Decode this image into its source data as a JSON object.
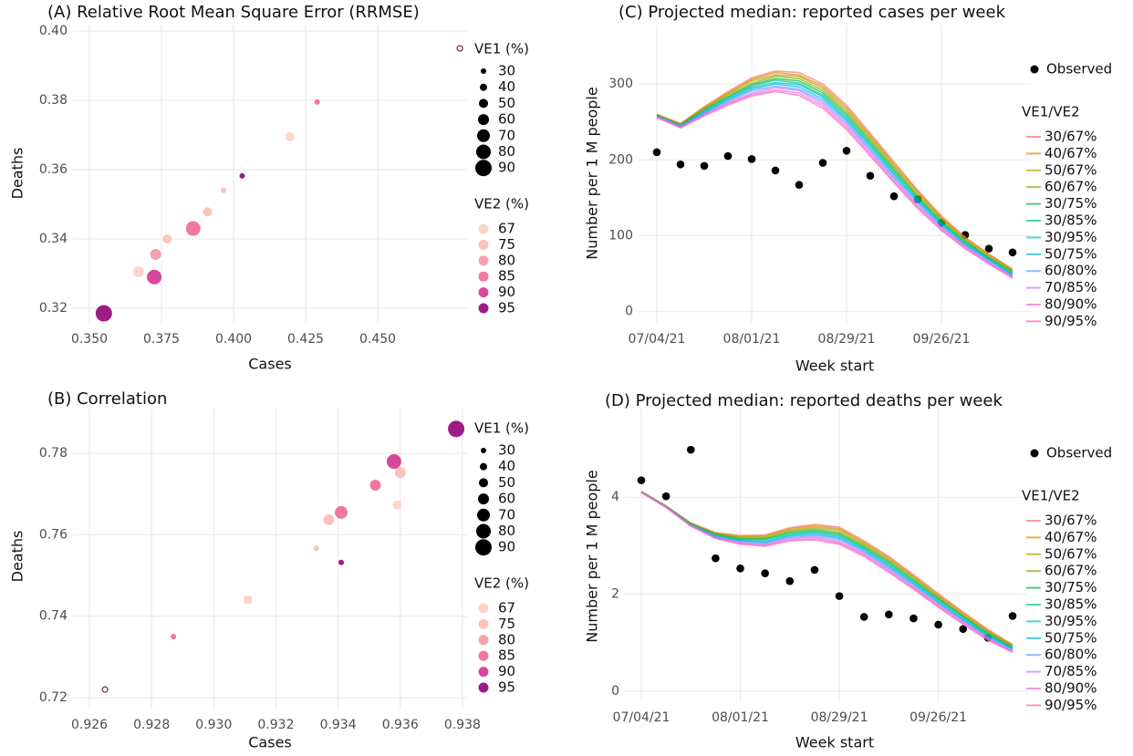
{
  "chart_data": [
    {
      "type": "scatter",
      "title": "(A) Relative Root Mean Square Error (RRMSE)",
      "x_label": "Cases",
      "y_label": "Deaths",
      "x": [
        0.355,
        0.367,
        0.3725,
        0.373,
        0.377,
        0.386,
        0.391,
        0.3965,
        0.403,
        0.4195,
        0.429,
        0.4785
      ],
      "y": [
        0.3185,
        0.3305,
        0.329,
        0.3355,
        0.34,
        0.343,
        0.3478,
        0.354,
        0.3582,
        0.3695,
        0.3795,
        0.395
      ],
      "sizes": [
        90,
        60,
        80,
        60,
        50,
        80,
        50,
        30,
        30,
        50,
        30,
        30
      ],
      "color_values": [
        95,
        67,
        90,
        80,
        75,
        85,
        75,
        75,
        95,
        67,
        85,
        null
      ],
      "xlim": [
        0.3443,
        0.481
      ],
      "ylim": [
        0.3155,
        0.4016
      ],
      "xticks": [
        {
          "value": 0.35,
          "label": "0.350"
        },
        {
          "value": 0.375,
          "label": "0.375"
        },
        {
          "value": 0.4,
          "label": "0.400"
        },
        {
          "value": 0.425,
          "label": "0.425"
        },
        {
          "value": 0.45,
          "label": "0.450"
        }
      ],
      "yticks": [
        0.32,
        0.34,
        0.36,
        0.38,
        {
          "value": 0.4,
          "label": "0.40"
        }
      ],
      "grid": true,
      "size_legend": {
        "title": "VE1 (%)",
        "values": [
          30,
          40,
          50,
          60,
          70,
          80,
          90
        ]
      },
      "color_legend": {
        "title": "VE2 (%)",
        "values": [
          67,
          75,
          80,
          85,
          90,
          95
        ],
        "colors": [
          "#fdd5c9",
          "#fbc3bb",
          "#f8a1af",
          "#f277a0",
          "#d9479a",
          "#9e1a87"
        ]
      }
    },
    {
      "type": "scatter",
      "title": "(B) Correlation",
      "x_label": "Cases",
      "y_label": "Deaths",
      "x": [
        0.9265,
        0.9287,
        0.9311,
        0.9333,
        0.9337,
        0.9341,
        0.9341,
        0.9352,
        0.9358,
        0.936,
        0.9359,
        0.9378
      ],
      "y": [
        0.722,
        0.735,
        0.744,
        0.7567,
        0.7637,
        0.7655,
        0.7532,
        0.7722,
        0.778,
        0.7753,
        0.7673,
        0.786
      ],
      "sizes": [
        30,
        30,
        50,
        30,
        60,
        70,
        30,
        60,
        80,
        60,
        50,
        90
      ],
      "color_values": [
        null,
        85,
        67,
        75,
        75,
        85,
        95,
        85,
        90,
        75,
        67,
        95
      ],
      "xlim": [
        0.92547,
        0.93815
      ],
      "ylim": [
        0.7171,
        0.791
      ],
      "xticks": [
        0.926,
        0.928,
        {
          "value": 0.93,
          "label": "0.930"
        },
        0.932,
        0.934,
        0.936,
        0.938
      ],
      "yticks": [
        0.72,
        0.74,
        0.76,
        0.78
      ],
      "grid": true,
      "size_legend": {
        "title": "VE1 (%)",
        "values": [
          30,
          40,
          50,
          60,
          70,
          80,
          90
        ]
      },
      "color_legend": {
        "title": "VE2 (%)",
        "values": [
          67,
          75,
          80,
          85,
          90,
          95
        ],
        "colors": [
          "#fdd5c9",
          "#fbc3bb",
          "#f8a1af",
          "#f277a0",
          "#d9479a",
          "#9e1a87"
        ]
      }
    },
    {
      "type": "line",
      "title": "(C) Projected median: reported cases per week",
      "x_label": "Week start",
      "y_label": "Number per 1 M people",
      "categories": [
        "07/04/21",
        null,
        null,
        null,
        "08/01/21",
        null,
        null,
        null,
        "08/29/21",
        null,
        null,
        null,
        "09/26/21",
        null,
        null,
        null
      ],
      "ylim": [
        -16,
        377
      ],
      "yticks": [
        0,
        100,
        200,
        300
      ],
      "grid": true,
      "legend_title": "VE1/VE2",
      "series": [
        {
          "name": "Observed",
          "color": "#000000",
          "mode": "markers",
          "values": [
            210,
            194,
            192,
            205,
            201,
            186,
            167,
            196,
            212,
            179,
            152,
            148,
            117,
            101,
            83,
            78
          ]
        },
        {
          "name": "30/67%",
          "color": "#F8766D",
          "values": [
            260,
            248,
            270,
            290,
            308,
            317,
            315,
            300,
            272,
            235,
            197,
            160,
            126,
            98,
            76,
            56
          ]
        },
        {
          "name": "40/67%",
          "color": "#DE8C00",
          "values": [
            260,
            247,
            269,
            288,
            306,
            315,
            312,
            297,
            269,
            232,
            195,
            158,
            124,
            97,
            75,
            55
          ]
        },
        {
          "name": "50/67%",
          "color": "#B79F00",
          "values": [
            259,
            247,
            268,
            287,
            304,
            312,
            310,
            294,
            266,
            230,
            192,
            156,
            123,
            95,
            74,
            54
          ]
        },
        {
          "name": "60/67%",
          "color": "#7CAE00",
          "values": [
            259,
            246,
            267,
            285,
            301,
            310,
            307,
            291,
            263,
            227,
            190,
            153,
            121,
            94,
            72,
            53
          ]
        },
        {
          "name": "30/75%",
          "color": "#00BA38",
          "values": [
            258,
            246,
            266,
            283,
            299,
            307,
            304,
            288,
            260,
            224,
            187,
            151,
            119,
            92,
            71,
            52
          ]
        },
        {
          "name": "30/85%",
          "color": "#00C08B",
          "values": [
            258,
            245,
            264,
            282,
            297,
            305,
            301,
            285,
            257,
            221,
            185,
            149,
            117,
            91,
            70,
            50
          ]
        },
        {
          "name": "30/95%",
          "color": "#00BFC4",
          "values": [
            258,
            245,
            263,
            280,
            295,
            302,
            299,
            283,
            254,
            219,
            182,
            147,
            116,
            90,
            69,
            49
          ]
        },
        {
          "name": "50/75%",
          "color": "#00B4F0",
          "values": [
            257,
            244,
            262,
            279,
            293,
            300,
            296,
            280,
            252,
            216,
            180,
            145,
            114,
            88,
            68,
            48
          ]
        },
        {
          "name": "60/80%",
          "color": "#619CFF",
          "values": [
            257,
            244,
            261,
            277,
            291,
            297,
            293,
            277,
            249,
            213,
            177,
            143,
            112,
            87,
            67,
            47
          ]
        },
        {
          "name": "70/85%",
          "color": "#C77CFF",
          "values": [
            257,
            243,
            260,
            275,
            288,
            295,
            291,
            274,
            246,
            211,
            175,
            140,
            111,
            86,
            65,
            46
          ]
        },
        {
          "name": "80/90%",
          "color": "#F564E3",
          "values": [
            256,
            243,
            259,
            274,
            286,
            292,
            288,
            271,
            243,
            208,
            172,
            138,
            109,
            84,
            64,
            45
          ]
        },
        {
          "name": "90/95%",
          "color": "#FF64B0",
          "values": [
            256,
            242,
            258,
            272,
            284,
            290,
            285,
            268,
            240,
            205,
            170,
            136,
            107,
            83,
            63,
            44
          ]
        }
      ]
    },
    {
      "type": "line",
      "title": "(D) Projected median: reported deaths per week",
      "x_label": "Week start",
      "y_label": "Number per 1 M people",
      "categories": [
        "07/04/21",
        null,
        null,
        null,
        "08/01/21",
        null,
        null,
        null,
        "08/29/21",
        null,
        null,
        null,
        "09/26/21",
        null,
        null,
        null
      ],
      "ylim": [
        -0.23,
        5.83
      ],
      "yticks": [
        0,
        2,
        4
      ],
      "grid": true,
      "legend_title": "VE1/VE2",
      "series": [
        {
          "name": "Observed",
          "color": "#000000",
          "mode": "markers",
          "values": [
            4.35,
            4.02,
            4.98,
            2.74,
            2.53,
            2.43,
            2.27,
            2.5,
            1.96,
            1.53,
            1.58,
            1.5,
            1.37,
            1.28,
            1.1,
            1.55
          ]
        },
        {
          "name": "30/67%",
          "color": "#F8766D",
          "values": [
            4.12,
            3.82,
            3.47,
            3.27,
            3.21,
            3.22,
            3.37,
            3.44,
            3.38,
            3.1,
            2.78,
            2.4,
            2.01,
            1.63,
            1.27,
            0.96
          ]
        },
        {
          "name": "40/67%",
          "color": "#DE8C00",
          "values": [
            4.12,
            3.82,
            3.46,
            3.26,
            3.19,
            3.2,
            3.35,
            3.41,
            3.35,
            3.07,
            2.75,
            2.37,
            1.98,
            1.61,
            1.25,
            0.95
          ]
        },
        {
          "name": "50/67%",
          "color": "#B79F00",
          "values": [
            4.12,
            3.81,
            3.46,
            3.25,
            3.18,
            3.18,
            3.32,
            3.38,
            3.32,
            3.04,
            2.72,
            2.35,
            1.96,
            1.58,
            1.23,
            0.93
          ]
        },
        {
          "name": "60/67%",
          "color": "#7CAE00",
          "values": [
            4.11,
            3.81,
            3.45,
            3.24,
            3.16,
            3.16,
            3.3,
            3.35,
            3.28,
            3.01,
            2.69,
            2.32,
            1.93,
            1.56,
            1.21,
            0.92
          ]
        },
        {
          "name": "30/75%",
          "color": "#00BA38",
          "values": [
            4.11,
            3.81,
            3.44,
            3.23,
            3.14,
            3.14,
            3.27,
            3.32,
            3.25,
            2.98,
            2.66,
            2.29,
            1.91,
            1.54,
            1.19,
            0.9
          ]
        },
        {
          "name": "30/85%",
          "color": "#00C08B",
          "values": [
            4.11,
            3.81,
            3.44,
            3.22,
            3.13,
            3.12,
            3.25,
            3.29,
            3.22,
            2.95,
            2.63,
            2.26,
            1.88,
            1.52,
            1.17,
            0.89
          ]
        },
        {
          "name": "30/95%",
          "color": "#00BFC4",
          "values": [
            4.11,
            3.8,
            3.43,
            3.2,
            3.11,
            3.09,
            3.22,
            3.27,
            3.19,
            2.93,
            2.6,
            2.24,
            1.86,
            1.49,
            1.15,
            0.87
          ]
        },
        {
          "name": "50/75%",
          "color": "#00B4F0",
          "values": [
            4.11,
            3.8,
            3.43,
            3.19,
            3.1,
            3.07,
            3.2,
            3.24,
            3.16,
            2.9,
            2.57,
            2.21,
            1.83,
            1.47,
            1.13,
            0.86
          ]
        },
        {
          "name": "60/80%",
          "color": "#619CFF",
          "values": [
            4.11,
            3.8,
            3.42,
            3.18,
            3.08,
            3.05,
            3.17,
            3.21,
            3.13,
            2.87,
            2.54,
            2.18,
            1.81,
            1.45,
            1.11,
            0.84
          ]
        },
        {
          "name": "70/85%",
          "color": "#C77CFF",
          "values": [
            4.1,
            3.8,
            3.41,
            3.17,
            3.06,
            3.03,
            3.15,
            3.18,
            3.09,
            2.84,
            2.51,
            2.15,
            1.78,
            1.43,
            1.09,
            0.83
          ]
        },
        {
          "name": "80/90%",
          "color": "#F564E3",
          "values": [
            4.1,
            3.79,
            3.41,
            3.16,
            3.05,
            3.01,
            3.12,
            3.15,
            3.06,
            2.81,
            2.48,
            2.13,
            1.76,
            1.4,
            1.07,
            0.81
          ]
        },
        {
          "name": "90/95%",
          "color": "#FF64B0",
          "values": [
            4.1,
            3.79,
            3.4,
            3.15,
            3.03,
            2.99,
            3.1,
            3.12,
            3.03,
            2.78,
            2.45,
            2.1,
            1.73,
            1.38,
            1.05,
            0.8
          ]
        }
      ]
    }
  ]
}
